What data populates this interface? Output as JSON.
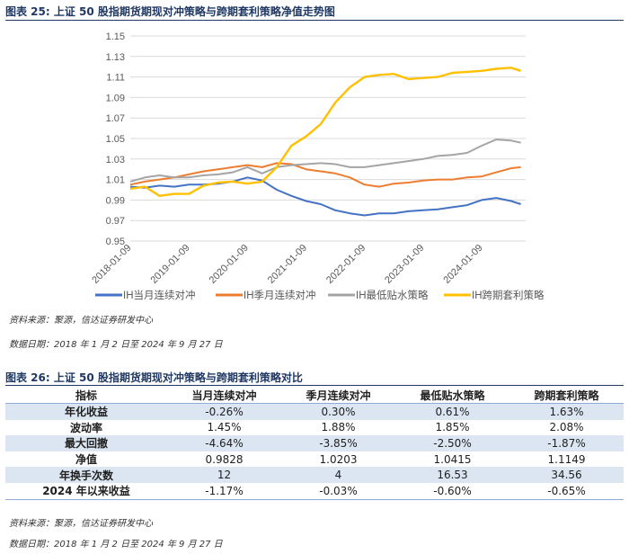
{
  "fig25": {
    "title": "图表 25: 上证 50 股指期货期现对冲策略与跨期套利策略净值走势图",
    "source": "资料来源：聚源，信达证券研发中心",
    "date": "数据日期：2018 年 1 月 2 日至 2024 年 9 月 27 日"
  },
  "chart_data": {
    "type": "line",
    "title": "",
    "xlabel": "",
    "ylabel": "",
    "ylim": [
      0.95,
      1.15
    ],
    "yticks": [
      "0.95",
      "0.97",
      "0.99",
      "1.01",
      "1.03",
      "1.05",
      "1.07",
      "1.09",
      "1.11",
      "1.13",
      "1.15"
    ],
    "xticks": [
      "2018-01-09",
      "2019-01-09",
      "2020-01-09",
      "2021-01-09",
      "2022-01-09",
      "2023-01-09",
      "2024-01-09"
    ],
    "grid": "horizontal",
    "legend": "bottom",
    "x": [
      "2018-01",
      "2018-04",
      "2018-07",
      "2018-10",
      "2019-01",
      "2019-04",
      "2019-07",
      "2019-10",
      "2020-01",
      "2020-04",
      "2020-07",
      "2020-10",
      "2021-01",
      "2021-04",
      "2021-07",
      "2021-10",
      "2022-01",
      "2022-04",
      "2022-07",
      "2022-10",
      "2023-01",
      "2023-04",
      "2023-07",
      "2023-10",
      "2024-01",
      "2024-04",
      "2024-07",
      "2024-09"
    ],
    "series": [
      {
        "name": "IH当月连续对冲",
        "color": "#4472c4",
        "values": [
          1.003,
          1.002,
          1.004,
          1.003,
          1.005,
          1.005,
          1.006,
          1.008,
          1.012,
          1.009,
          1.0,
          0.994,
          0.989,
          0.986,
          0.98,
          0.977,
          0.975,
          0.977,
          0.977,
          0.979,
          0.98,
          0.981,
          0.983,
          0.985,
          0.99,
          0.992,
          0.989,
          0.986
        ]
      },
      {
        "name": "IH季月连续对冲",
        "color": "#ed7d31",
        "values": [
          1.005,
          1.008,
          1.01,
          1.012,
          1.015,
          1.018,
          1.02,
          1.022,
          1.024,
          1.022,
          1.026,
          1.025,
          1.02,
          1.018,
          1.016,
          1.012,
          1.005,
          1.003,
          1.006,
          1.007,
          1.009,
          1.01,
          1.01,
          1.012,
          1.013,
          1.017,
          1.021,
          1.022
        ]
      },
      {
        "name": "IH最低贴水策略",
        "color": "#a5a5a5",
        "values": [
          1.008,
          1.012,
          1.014,
          1.012,
          1.012,
          1.014,
          1.015,
          1.017,
          1.022,
          1.016,
          1.022,
          1.024,
          1.025,
          1.026,
          1.025,
          1.022,
          1.022,
          1.024,
          1.026,
          1.028,
          1.03,
          1.033,
          1.034,
          1.036,
          1.043,
          1.049,
          1.048,
          1.046
        ]
      },
      {
        "name": "IH跨期套利策略",
        "color": "#ffc000",
        "values": [
          1.001,
          1.003,
          0.994,
          0.996,
          0.996,
          1.004,
          1.007,
          1.008,
          1.006,
          1.008,
          1.022,
          1.043,
          1.052,
          1.064,
          1.085,
          1.1,
          1.11,
          1.112,
          1.113,
          1.108,
          1.109,
          1.11,
          1.114,
          1.115,
          1.116,
          1.118,
          1.119,
          1.116
        ]
      }
    ]
  },
  "fig26": {
    "title": "图表 26: 上证 50 股指期货期现对冲策略与跨期套利策略对比",
    "headers": [
      "指标",
      "当月连续对冲",
      "季月连续对冲",
      "最低贴水策略",
      "跨期套利策略"
    ],
    "rows": [
      [
        "年化收益",
        "-0.26%",
        "0.30%",
        "0.61%",
        "1.63%"
      ],
      [
        "波动率",
        "1.45%",
        "1.88%",
        "1.85%",
        "2.08%"
      ],
      [
        "最大回撤",
        "-4.64%",
        "-3.85%",
        "-2.50%",
        "-1.87%"
      ],
      [
        "净值",
        "0.9828",
        "1.0203",
        "1.0415",
        "1.1149"
      ],
      [
        "年换手次数",
        "12",
        "4",
        "16.53",
        "34.56"
      ],
      [
        "2024 年以来收益",
        "-1.17%",
        "-0.03%",
        "-0.60%",
        "-0.65%"
      ]
    ],
    "source": "资料来源：聚源，信达证券研发中心",
    "date": "数据日期：2018 年 1 月 2 日至 2024 年 9 月 27 日"
  }
}
